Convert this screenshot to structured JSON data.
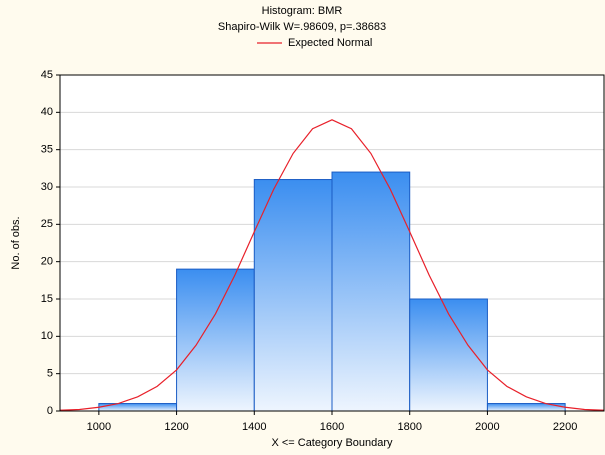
{
  "chart_data": {
    "type": "histogram",
    "title": "Histogram: BMR",
    "subtitle": "Shapiro-Wilk W=.98609, p=.38683",
    "xlabel": "X <= Category Boundary",
    "ylabel": "No. of obs.",
    "bins": [
      1000,
      1200,
      1400,
      1600,
      1800,
      2000,
      2200
    ],
    "counts": [
      1,
      19,
      31,
      32,
      15,
      1
    ],
    "color": "#3b8ef0",
    "curve": {
      "name": "Expected Normal",
      "color": "#e8202a",
      "x": [
        900,
        950,
        1000,
        1050,
        1100,
        1150,
        1200,
        1250,
        1300,
        1350,
        1400,
        1450,
        1500,
        1550,
        1600,
        1650,
        1700,
        1750,
        1800,
        1850,
        1900,
        1950,
        2000,
        2050,
        2100,
        2150,
        2200,
        2250,
        2300
      ],
      "values": [
        0.1,
        0.2,
        0.5,
        1.0,
        1.9,
        3.3,
        5.5,
        8.8,
        13.0,
        18.2,
        24.0,
        29.7,
        34.5,
        37.8,
        39,
        37.8,
        34.5,
        29.7,
        24.0,
        18.2,
        13.0,
        8.8,
        5.5,
        3.3,
        1.9,
        1.0,
        0.5,
        0.2,
        0.1
      ]
    },
    "xlim": [
      900,
      2300
    ],
    "xticks": [
      1000,
      1200,
      1400,
      1600,
      1800,
      2000,
      2200
    ],
    "ylim": [
      0,
      45
    ],
    "yticks": [
      0,
      5,
      10,
      15,
      20,
      25,
      30,
      35,
      40,
      45
    ],
    "grid": true
  }
}
